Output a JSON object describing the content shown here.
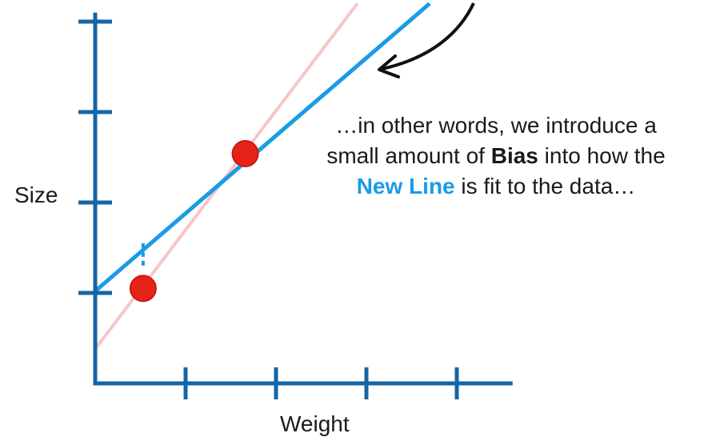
{
  "chart_data": {
    "type": "scatter",
    "xlabel": "Weight",
    "ylabel": "Size",
    "xlim": [
      0,
      4.6
    ],
    "ylim": [
      0,
      4.1
    ],
    "x_ticks": [
      1,
      2,
      3,
      4
    ],
    "y_ticks": [
      1,
      2,
      3,
      4
    ],
    "tick_labels_shown": false,
    "grid": false,
    "legend": "none",
    "points": [
      {
        "x": 0.53,
        "y": 1.05
      },
      {
        "x": 1.66,
        "y": 2.54
      }
    ],
    "lines": [
      {
        "name": "New Line",
        "x": [
          0,
          3.7
        ],
        "y": [
          1.02,
          4.2
        ],
        "color": "#1a9be6"
      },
      {
        "x": [
          0,
          2.9
        ],
        "y": [
          0.38,
          4.2
        ],
        "color": "#f7c6c4"
      }
    ],
    "residual_marker": {
      "x": 0.53,
      "y_from": 1.3,
      "y_to": 1.55
    },
    "annotation": {
      "line1": "…in other words, we introduce a",
      "line2_before": "small amount of ",
      "line2_bold": "Bias",
      "line2_after": " into how the",
      "line3_blue": "New Line",
      "line3_after": " is fit to the data…"
    }
  },
  "colors": {
    "axis": "#1565a6",
    "new_line": "#1a9be6",
    "old_line": "#f7c6c4",
    "point_fill": "#e62219",
    "point_stroke": "#c41b12",
    "arrow": "#111111",
    "bias_blue": "#1a9be6"
  }
}
